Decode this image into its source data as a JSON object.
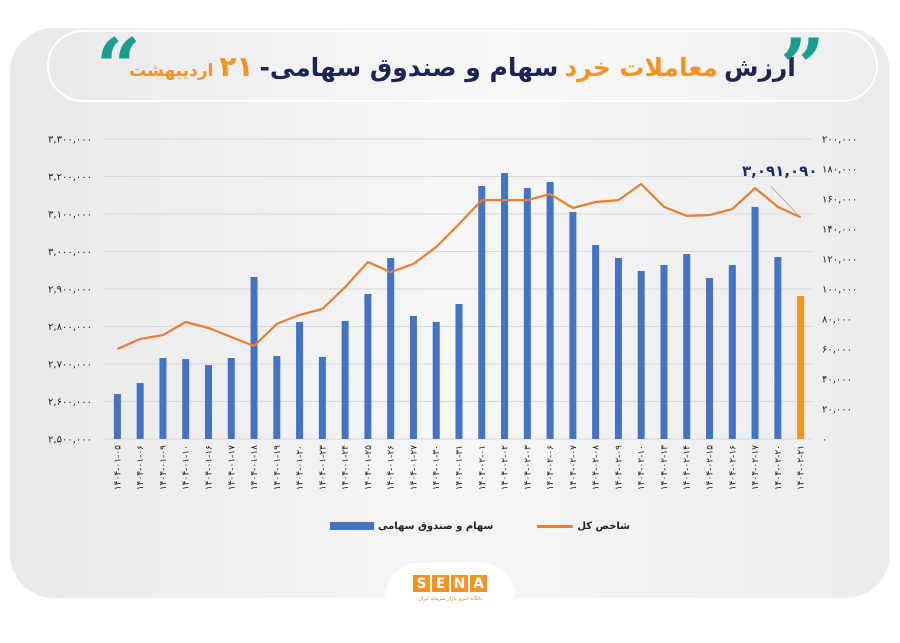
{
  "header": {
    "title_parts": {
      "p1": "ارزش",
      "p2": "معاملات خرد",
      "p3": "سهام و صندوق سهامی-",
      "p4": "۲۱",
      "p5": "اردیبهشت"
    },
    "quote_open": "“",
    "quote_close": "”"
  },
  "legend": {
    "line_label": "شاخص کل",
    "bar_label": "سهام و صندوق سهامی"
  },
  "logo": {
    "letters": [
      "S",
      "E",
      "N",
      "A"
    ],
    "subtitle": "پایگاه خبری بازار سرمایه ایران"
  },
  "colors": {
    "bar": "#4472c4",
    "bar_highlight": "#f7941d",
    "line": "#ed7d31",
    "title_navy": "#1d2456",
    "title_orange": "#f39325",
    "quote_teal": "#1c9e8e",
    "gridline": "#d9d9d9"
  },
  "chart_data": {
    "type": "bar+line",
    "title": "ارزش معاملات خرد سهام و صندوق سهامی-۲۱ اردیبهشت",
    "xlabel": "",
    "categories": [
      "۱۴۰۴-۰۱-۰۵",
      "۱۴۰۴-۰۱-۰۶",
      "۱۴۰۴-۰۱-۰۹",
      "۱۴۰۴-۰۱-۱۰",
      "۱۴۰۴-۰۱-۱۶",
      "۱۴۰۴-۰۱-۱۷",
      "۱۴۰۴-۰۱-۱۸",
      "۱۴۰۴-۰۱-۱۹",
      "۱۴۰۴-۰۱-۲۰",
      "۱۴۰۴-۰۱-۲۳",
      "۱۴۰۴-۰۱-۲۴",
      "۱۴۰۴-۰۱-۲۵",
      "۱۴۰۴-۰۱-۲۶",
      "۱۴۰۴-۰۱-۲۷",
      "۱۴۰۴-۰۱-۳۰",
      "۱۴۰۴-۰۱-۳۱",
      "۱۴۰۴-۰۲-۰۱",
      "۱۴۰۴-۰۲-۰۲",
      "۱۴۰۴-۰۲-۰۳",
      "۱۴۰۴-۰۲-۰۶",
      "۱۴۰۴-۰۲-۰۷",
      "۱۴۰۴-۰۲-۰۸",
      "۱۴۰۴-۰۲-۰۹",
      "۱۴۰۴-۰۲-۱۰",
      "۱۴۰۴-۰۲-۱۳",
      "۱۴۰۴-۰۲-۱۴",
      "۱۴۰۴-۰۲-۱۵",
      "۱۴۰۴-۰۲-۱۶",
      "۱۴۰۴-۰۲-۱۷",
      "۱۴۰۴-۰۲-۲۰",
      "۱۴۰۴-۰۲-۲۱"
    ],
    "series": [
      {
        "name": "سهام و صندوق سهامی",
        "type": "bar",
        "axis": "right",
        "values": [
          30000,
          37300,
          54000,
          53300,
          49300,
          54000,
          108000,
          55300,
          78000,
          54700,
          78700,
          96700,
          120700,
          82000,
          78000,
          90000,
          168700,
          177300,
          167300,
          171300,
          151300,
          129300,
          120700,
          112000,
          116000,
          123300,
          107300,
          116000,
          154700,
          121300,
          95300
        ],
        "highlight_last": true
      },
      {
        "name": "شاخص کل",
        "type": "line",
        "axis": "left",
        "values": [
          2740000,
          2767000,
          2777000,
          2812000,
          2796000,
          2772000,
          2748000,
          2807000,
          2831000,
          2847000,
          2905000,
          2972000,
          2945000,
          2967000,
          3012000,
          3073000,
          3137000,
          3137000,
          3137000,
          3153000,
          3116000,
          3132000,
          3137000,
          3180000,
          3119000,
          3095000,
          3097000,
          3113000,
          3169000,
          3119000,
          3091090
        ]
      }
    ],
    "left_axis": {
      "range": [
        2500000,
        3300000
      ],
      "ticks": [
        "۲,۵۰۰,۰۰۰",
        "۲,۶۰۰,۰۰۰",
        "۲,۷۰۰,۰۰۰",
        "۲,۸۰۰,۰۰۰",
        "۲,۹۰۰,۰۰۰",
        "۳,۰۰۰,۰۰۰",
        "۳,۱۰۰,۰۰۰",
        "۳,۲۰۰,۰۰۰",
        "۳,۳۰۰,۰۰۰"
      ]
    },
    "right_axis": {
      "range": [
        0,
        200000
      ],
      "ticks": [
        "۰",
        "۲۰,۰۰۰",
        "۴۰,۰۰۰",
        "۶۰,۰۰۰",
        "۸۰,۰۰۰",
        "۱۰۰,۰۰۰",
        "۱۲۰,۰۰۰",
        "۱۴۰,۰۰۰",
        "۱۶۰,۰۰۰",
        "۱۸۰,۰۰۰",
        "۲۰۰,۰۰۰"
      ]
    },
    "annotations": [
      {
        "text": "۳,۰۹۱,۰۹۰",
        "target_index": 30,
        "series": "شاخص کل"
      }
    ],
    "grid": true,
    "legend_position": "bottom"
  }
}
